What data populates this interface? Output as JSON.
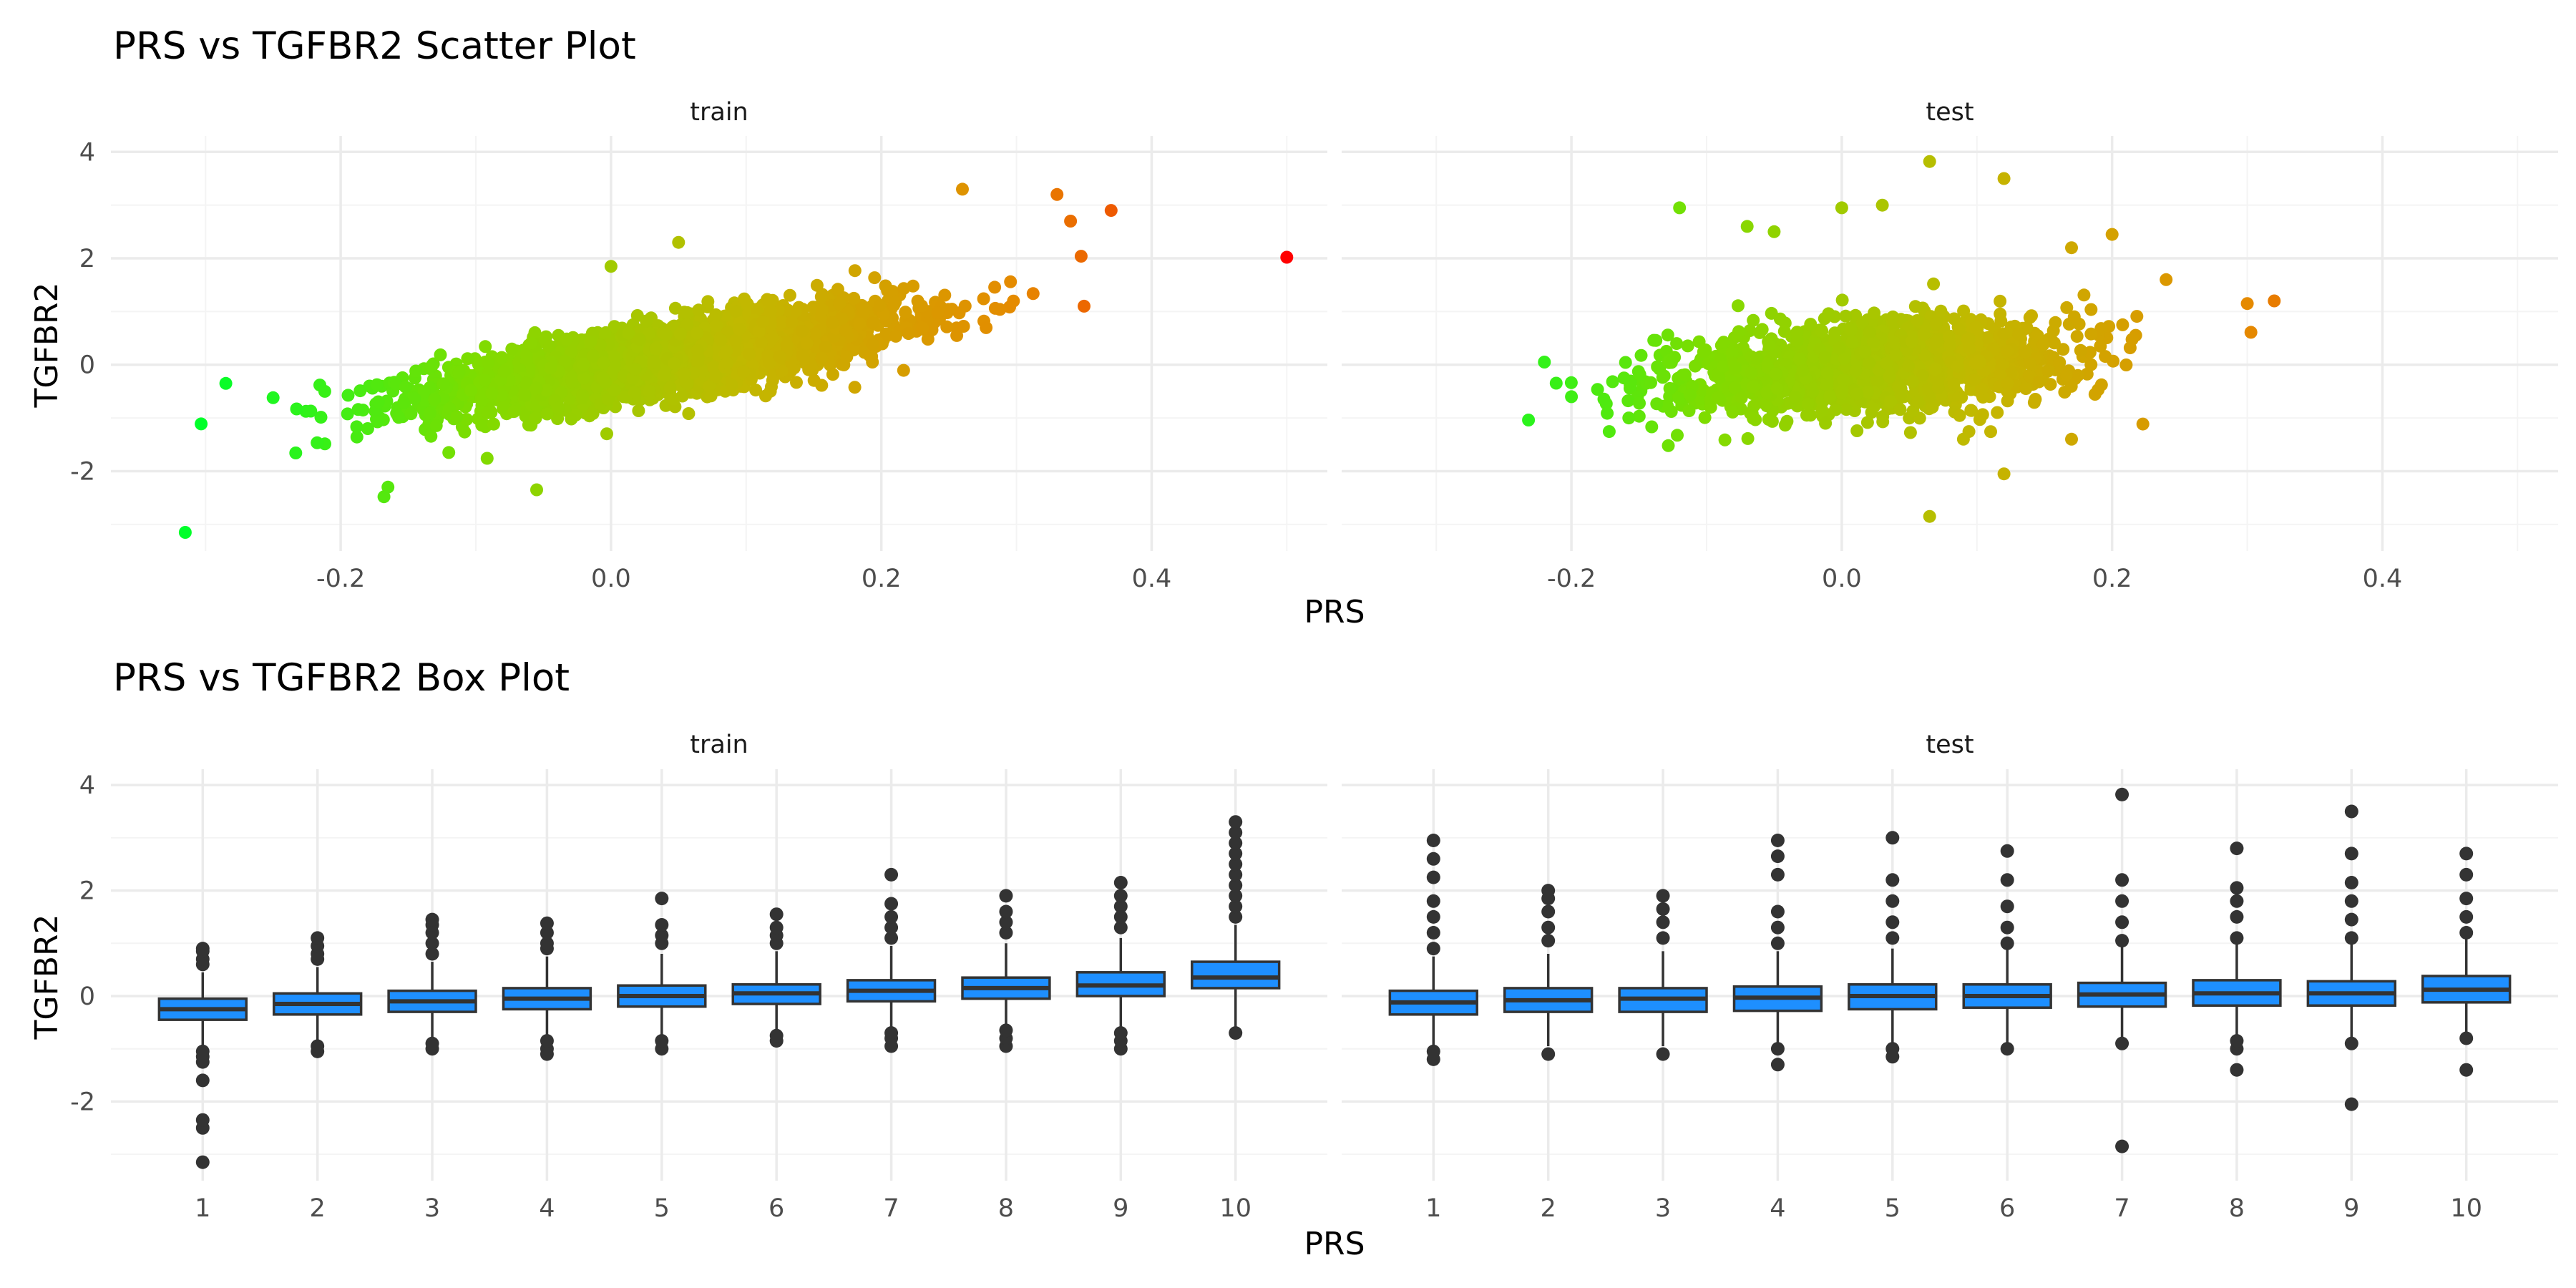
{
  "chart_data": [
    {
      "type": "scatter",
      "title": "PRS vs TGFBR2 Scatter Plot",
      "xlabel": "PRS",
      "ylabel": "TGFBR2",
      "panels": [
        "train",
        "test"
      ],
      "xlim": [
        -0.37,
        0.53
      ],
      "ylim": [
        -3.5,
        4.3
      ],
      "x_ticks": [
        "-0.2",
        "0.0",
        "0.2",
        "0.4"
      ],
      "x_tick_values": [
        -0.2,
        0.0,
        0.2,
        0.4
      ],
      "y_ticks": [
        "-2",
        "0",
        "2",
        "4"
      ],
      "y_tick_values": [
        -2,
        0,
        2,
        4
      ],
      "grid": true,
      "color_gradient": [
        "#00ff2a",
        "#7fdc00",
        "#c2b800",
        "#e58a00",
        "#ff0000"
      ],
      "series": [
        {
          "name": "train",
          "cloud": {
            "n": 3200,
            "x_mean": 0.04,
            "x_sd": 0.085,
            "slope": 4.0,
            "intercept": -0.05,
            "resid_sd": 0.32
          },
          "outliers": [
            [
              -0.315,
              -3.15
            ],
            [
              -0.285,
              -0.35
            ],
            [
              -0.25,
              -0.62
            ],
            [
              -0.165,
              -2.3
            ],
            [
              -0.168,
              -2.48
            ],
            [
              -0.055,
              -2.35
            ],
            [
              0.5,
              2.02
            ],
            [
              0.37,
              2.9
            ],
            [
              0.34,
              2.7
            ],
            [
              0.33,
              3.2
            ],
            [
              0.26,
              3.3
            ],
            [
              0.35,
              1.1
            ],
            [
              0.0,
              1.85
            ],
            [
              0.05,
              2.3
            ],
            [
              -0.12,
              -1.65
            ],
            [
              -0.18,
              -1.2
            ]
          ]
        },
        {
          "name": "test",
          "cloud": {
            "n": 1500,
            "x_mean": 0.02,
            "x_sd": 0.075,
            "slope": 1.6,
            "intercept": -0.07,
            "resid_sd": 0.42
          },
          "outliers": [
            [
              -0.22,
              0.05
            ],
            [
              -0.2,
              -0.6
            ],
            [
              -0.12,
              2.95
            ],
            [
              -0.07,
              2.6
            ],
            [
              -0.05,
              2.5
            ],
            [
              0.065,
              3.82
            ],
            [
              0.12,
              3.5
            ],
            [
              0.0,
              2.95
            ],
            [
              0.03,
              3.0
            ],
            [
              0.065,
              -2.85
            ],
            [
              0.12,
              -2.05
            ],
            [
              0.2,
              2.45
            ],
            [
              0.24,
              1.6
            ],
            [
              0.3,
              1.15
            ],
            [
              0.32,
              1.2
            ],
            [
              0.17,
              -1.4
            ],
            [
              0.09,
              -1.4
            ],
            [
              0.17,
              2.2
            ]
          ]
        }
      ]
    },
    {
      "type": "box",
      "title": "PRS vs TGFBR2 Box Plot",
      "xlabel": "PRS",
      "ylabel": "TGFBR2",
      "panels": [
        "train",
        "test"
      ],
      "categories": [
        "1",
        "2",
        "3",
        "4",
        "5",
        "6",
        "7",
        "8",
        "9",
        "10"
      ],
      "ylim": [
        -3.5,
        4.3
      ],
      "y_ticks": [
        "-2",
        "0",
        "2",
        "4"
      ],
      "y_tick_values": [
        -2,
        0,
        2,
        4
      ],
      "box_color": "#1e8fff",
      "series": [
        {
          "name": "train",
          "boxes": [
            {
              "q1": -0.45,
              "median": -0.25,
              "q3": -0.05,
              "lo": -0.95,
              "hi": 0.45
            },
            {
              "q1": -0.35,
              "median": -0.15,
              "q3": 0.05,
              "lo": -0.9,
              "hi": 0.55
            },
            {
              "q1": -0.3,
              "median": -0.1,
              "q3": 0.1,
              "lo": -0.85,
              "hi": 0.65
            },
            {
              "q1": -0.25,
              "median": -0.05,
              "q3": 0.15,
              "lo": -0.8,
              "hi": 0.75
            },
            {
              "q1": -0.2,
              "median": 0.0,
              "q3": 0.2,
              "lo": -0.75,
              "hi": 0.8
            },
            {
              "q1": -0.15,
              "median": 0.05,
              "q3": 0.22,
              "lo": -0.7,
              "hi": 0.85
            },
            {
              "q1": -0.1,
              "median": 0.1,
              "q3": 0.3,
              "lo": -0.6,
              "hi": 0.95
            },
            {
              "q1": -0.05,
              "median": 0.15,
              "q3": 0.35,
              "lo": -0.55,
              "hi": 1.0
            },
            {
              "q1": 0.0,
              "median": 0.2,
              "q3": 0.45,
              "lo": -0.6,
              "hi": 1.1
            },
            {
              "q1": 0.15,
              "median": 0.35,
              "q3": 0.65,
              "lo": -0.6,
              "hi": 1.35
            }
          ],
          "outliers": [
            [
              -3.15,
              -2.5,
              -2.35,
              -1.6,
              -1.25,
              -1.15,
              -1.05,
              0.6,
              0.7,
              0.85,
              0.9
            ],
            [
              -1.05,
              -0.95,
              0.7,
              0.8,
              0.95,
              1.1
            ],
            [
              -1.0,
              -0.9,
              0.8,
              1.0,
              1.2,
              1.35,
              1.45
            ],
            [
              -1.1,
              -1.0,
              -0.85,
              0.9,
              1.0,
              1.2,
              1.38
            ],
            [
              -1.0,
              -0.85,
              1.0,
              1.15,
              1.35,
              1.85
            ],
            [
              -0.85,
              -0.75,
              1.0,
              1.15,
              1.3,
              1.55
            ],
            [
              -0.95,
              -0.8,
              -0.7,
              1.1,
              1.3,
              1.5,
              1.75,
              2.3
            ],
            [
              -0.95,
              -0.8,
              -0.65,
              1.2,
              1.4,
              1.6,
              1.9
            ],
            [
              -1.0,
              -0.85,
              -0.7,
              1.3,
              1.5,
              1.7,
              1.9,
              2.15
            ],
            [
              -0.7,
              1.5,
              1.7,
              1.9,
              2.1,
              2.3,
              2.5,
              2.7,
              2.9,
              3.1,
              3.3
            ]
          ]
        },
        {
          "name": "test",
          "boxes": [
            {
              "q1": -0.35,
              "median": -0.12,
              "q3": 0.1,
              "lo": -0.95,
              "hi": 0.75
            },
            {
              "q1": -0.3,
              "median": -0.08,
              "q3": 0.15,
              "lo": -0.95,
              "hi": 0.8
            },
            {
              "q1": -0.3,
              "median": -0.05,
              "q3": 0.15,
              "lo": -0.95,
              "hi": 0.85
            },
            {
              "q1": -0.28,
              "median": -0.03,
              "q3": 0.18,
              "lo": -0.95,
              "hi": 0.85
            },
            {
              "q1": -0.25,
              "median": 0.0,
              "q3": 0.22,
              "lo": -0.95,
              "hi": 0.9
            },
            {
              "q1": -0.22,
              "median": 0.0,
              "q3": 0.22,
              "lo": -0.9,
              "hi": 0.9
            },
            {
              "q1": -0.2,
              "median": 0.03,
              "q3": 0.25,
              "lo": -0.9,
              "hi": 0.95
            },
            {
              "q1": -0.18,
              "median": 0.05,
              "q3": 0.3,
              "lo": -0.85,
              "hi": 1.0
            },
            {
              "q1": -0.18,
              "median": 0.05,
              "q3": 0.28,
              "lo": -0.85,
              "hi": 1.0
            },
            {
              "q1": -0.12,
              "median": 0.12,
              "q3": 0.38,
              "lo": -0.8,
              "hi": 1.1
            }
          ],
          "outliers": [
            [
              -1.2,
              -1.05,
              0.9,
              1.2,
              1.5,
              1.8,
              2.25,
              2.6,
              2.95
            ],
            [
              -1.1,
              1.05,
              1.3,
              1.6,
              1.85,
              2.0
            ],
            [
              -1.1,
              1.1,
              1.4,
              1.65,
              1.9
            ],
            [
              -1.3,
              -1.0,
              1.0,
              1.3,
              1.6,
              2.3,
              2.65,
              2.95
            ],
            [
              -1.15,
              -1.0,
              1.1,
              1.4,
              1.8,
              2.2,
              3.0
            ],
            [
              -1.0,
              1.0,
              1.3,
              1.7,
              2.2,
              2.75
            ],
            [
              -2.85,
              -0.9,
              1.05,
              1.4,
              1.8,
              2.2,
              3.82
            ],
            [
              -1.4,
              -1.0,
              -0.85,
              1.1,
              1.5,
              1.8,
              2.05,
              2.8
            ],
            [
              -2.05,
              -0.9,
              1.1,
              1.45,
              1.8,
              2.15,
              2.7,
              3.5
            ],
            [
              -1.4,
              -0.8,
              1.2,
              1.5,
              1.85,
              2.3,
              2.7
            ]
          ]
        }
      ]
    }
  ]
}
